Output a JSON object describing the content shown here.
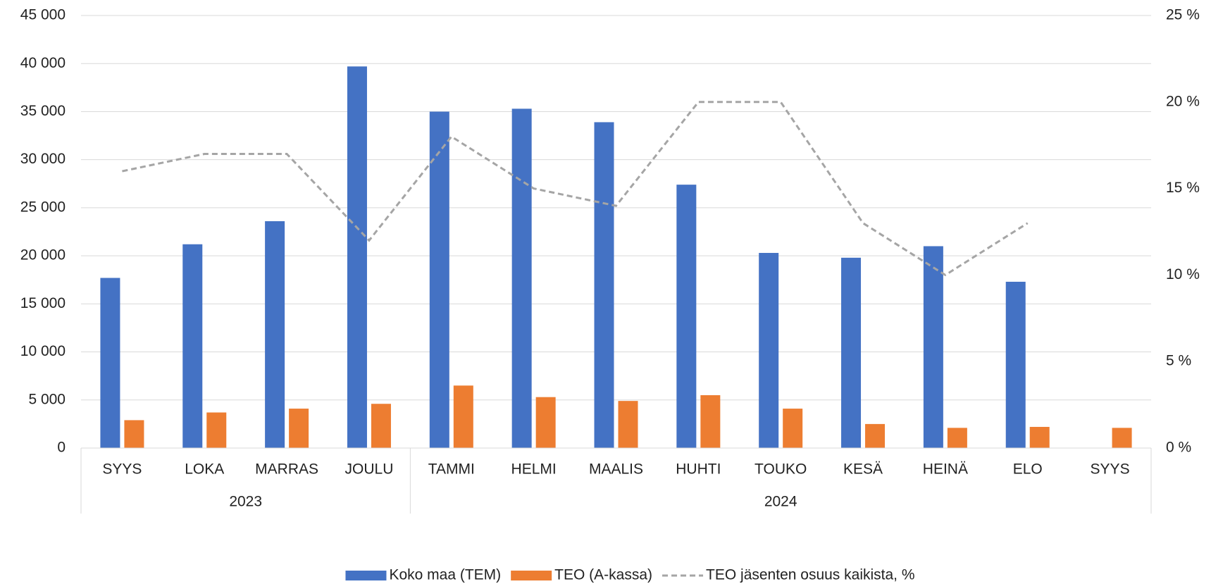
{
  "chart_data": {
    "type": "bar_line",
    "categories": [
      "SYYS",
      "LOKA",
      "MARRAS",
      "JOULU",
      "TAMMI",
      "HELMI",
      "MAALIS",
      "HUHTI",
      "TOUKO",
      "KESÄ",
      "HEINÄ",
      "ELO",
      "SYYS"
    ],
    "category_groups": [
      "2023",
      null,
      null,
      null,
      "2024",
      null,
      null,
      null,
      null,
      null,
      null,
      null,
      null
    ],
    "series": [
      {
        "name": "Koko maa (TEM)",
        "type": "bar",
        "color": "#4472c4",
        "values": [
          17700,
          21200,
          23600,
          39700,
          35000,
          35300,
          33900,
          27400,
          20300,
          19800,
          21000,
          17300,
          null
        ]
      },
      {
        "name": "TEO (A-kassa)",
        "type": "bar",
        "color": "#ed7d31",
        "values": [
          2900,
          3700,
          4100,
          4600,
          6500,
          5300,
          4900,
          5500,
          4100,
          2500,
          2100,
          2200,
          2100
        ]
      },
      {
        "name": "TEO jäsenten osuus kaikista, %",
        "type": "line",
        "axis": "y2",
        "color": "#a5a5a5",
        "dashed": true,
        "values": [
          16,
          17,
          17,
          12,
          18,
          15,
          14,
          20,
          20,
          13,
          10,
          13,
          null
        ]
      }
    ],
    "ylim": [
      0,
      45000
    ],
    "yticks": [
      {
        "value": 0,
        "label": "0"
      },
      {
        "value": 5000,
        "label": "5 000"
      },
      {
        "value": 10000,
        "label": "10 000"
      },
      {
        "value": 15000,
        "label": "15 000"
      },
      {
        "value": 20000,
        "label": "20 000"
      },
      {
        "value": 25000,
        "label": "25 000"
      },
      {
        "value": 30000,
        "label": "30 000"
      },
      {
        "value": 35000,
        "label": "35 000"
      },
      {
        "value": 40000,
        "label": "40 000"
      },
      {
        "value": 45000,
        "label": "45 000"
      }
    ],
    "y2lim": [
      0,
      25
    ],
    "y2ticks": [
      {
        "value": 0,
        "label": "0 %"
      },
      {
        "value": 5,
        "label": "5 %"
      },
      {
        "value": 10,
        "label": "10 %"
      },
      {
        "value": 15,
        "label": "15 %"
      },
      {
        "value": 20,
        "label": "20 %"
      },
      {
        "value": 25,
        "label": "25 %"
      }
    ],
    "grid": true,
    "legend": "bottom"
  }
}
